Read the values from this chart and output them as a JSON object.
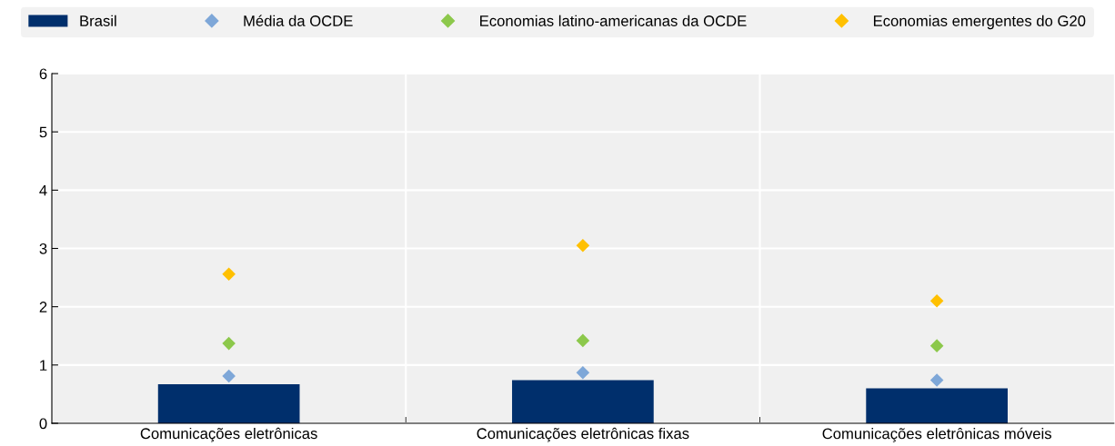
{
  "chart_data": {
    "type": "bar",
    "categories": [
      "Comunicações eletrônicas",
      "Comunicações eletrônicas fixas",
      "Comunicações eletrônicas móveis"
    ],
    "series": [
      {
        "name": "Brasil",
        "color": "#002f6c",
        "values": [
          0.67,
          0.74,
          0.6
        ]
      },
      {
        "name": "Média da OCDE",
        "type": "scatter",
        "color": "#7ea7d8",
        "values": [
          0.81,
          0.87,
          0.74
        ]
      },
      {
        "name": "Economias latino-americanas da OCDE",
        "type": "scatter",
        "color": "#8cc84b",
        "values": [
          1.37,
          1.42,
          1.33
        ]
      },
      {
        "name": "Economias emergentes do G20",
        "type": "scatter",
        "color": "#ffc000",
        "values": [
          2.56,
          3.05,
          2.1
        ]
      }
    ],
    "ylim": [
      0,
      6
    ],
    "yticks": [
      0,
      1,
      2,
      3,
      4,
      5,
      6
    ],
    "marker": "diamond",
    "grid": true,
    "legend": "top"
  }
}
